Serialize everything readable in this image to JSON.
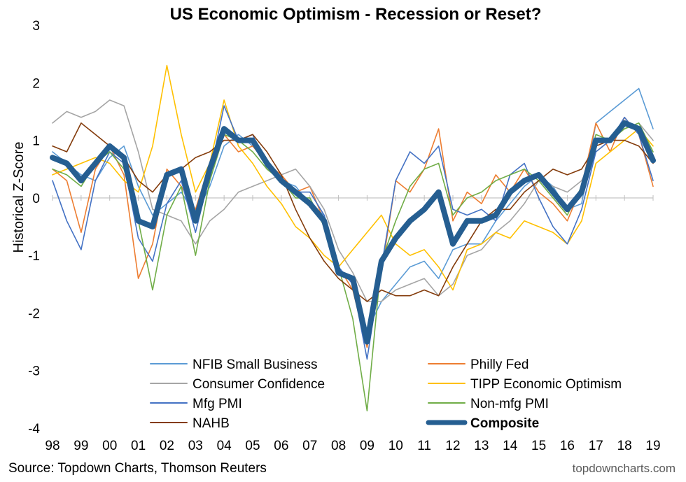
{
  "chart_data": {
    "type": "line",
    "title": "US Economic Optimism - Recession or Reset?",
    "ylabel": "Historical Z-Score",
    "xlabel": "",
    "ylim": [
      -4,
      3
    ],
    "yticks": [
      3,
      2,
      1,
      0,
      -1,
      -2,
      -3,
      -4
    ],
    "xlim": [
      1998,
      2019.1
    ],
    "xticks": [
      {
        "value": 1998,
        "label": "98"
      },
      {
        "value": 1999,
        "label": "99"
      },
      {
        "value": 2000,
        "label": "00"
      },
      {
        "value": 2001,
        "label": "01"
      },
      {
        "value": 2002,
        "label": "02"
      },
      {
        "value": 2003,
        "label": "03"
      },
      {
        "value": 2004,
        "label": "04"
      },
      {
        "value": 2005,
        "label": "05"
      },
      {
        "value": 2006,
        "label": "06"
      },
      {
        "value": 2007,
        "label": "07"
      },
      {
        "value": 2008,
        "label": "08"
      },
      {
        "value": 2009,
        "label": "09"
      },
      {
        "value": 2010,
        "label": "10"
      },
      {
        "value": 2011,
        "label": "11"
      },
      {
        "value": 2012,
        "label": "12"
      },
      {
        "value": 2013,
        "label": "13"
      },
      {
        "value": 2014,
        "label": "14"
      },
      {
        "value": 2015,
        "label": "15"
      },
      {
        "value": 2016,
        "label": "16"
      },
      {
        "value": 2017,
        "label": "17"
      },
      {
        "value": 2018,
        "label": "18"
      },
      {
        "value": 2019,
        "label": "19"
      }
    ],
    "x": [
      1998,
      1998.5,
      1999,
      1999.5,
      2000,
      2000.5,
      2001,
      2001.5,
      2002,
      2002.5,
      2003,
      2003.5,
      2004,
      2004.5,
      2005,
      2005.5,
      2006,
      2006.5,
      2007,
      2007.5,
      2008,
      2008.5,
      2009,
      2009.5,
      2010,
      2010.5,
      2011,
      2011.5,
      2012,
      2012.5,
      2013,
      2013.5,
      2014,
      2014.5,
      2015,
      2015.5,
      2016,
      2016.5,
      2017,
      2017.5,
      2018,
      2018.5,
      2019
    ],
    "series": [
      {
        "name": "NFIB Small Business",
        "color": "#5B9BD5",
        "width": 1.6,
        "values": [
          0.8,
          0.6,
          0.4,
          0.3,
          0.7,
          0.9,
          0.2,
          -0.3,
          -0.1,
          0.1,
          -0.3,
          0.2,
          0.9,
          1.1,
          0.9,
          0.6,
          0.3,
          0.2,
          -0.1,
          -0.3,
          -1.2,
          -1.5,
          -2.3,
          -1.8,
          -1.5,
          -1.2,
          -1.1,
          -1.4,
          -0.9,
          -0.8,
          -0.8,
          -0.4,
          -0.1,
          0.2,
          0.4,
          0.2,
          -0.2,
          -0.1,
          1.3,
          1.5,
          1.7,
          1.9,
          1.2
        ]
      },
      {
        "name": "Philly Fed",
        "color": "#ED7D31",
        "width": 1.6,
        "values": [
          0.5,
          0.3,
          -0.6,
          0.5,
          0.9,
          0.4,
          -1.4,
          -0.8,
          0.5,
          0.2,
          -0.2,
          0.6,
          1.1,
          0.8,
          0.9,
          0.6,
          0.4,
          0.1,
          0.2,
          -0.4,
          -1.2,
          -1.6,
          -2.6,
          -1.3,
          0.3,
          0.1,
          0.5,
          1.2,
          -0.4,
          0.1,
          -0.1,
          0.4,
          0.1,
          0.5,
          0.1,
          -0.1,
          -0.4,
          0.2,
          1.3,
          0.8,
          1.4,
          1.1,
          0.2
        ]
      },
      {
        "name": "Consumer Confidence",
        "color": "#A5A5A5",
        "width": 1.6,
        "values": [
          1.3,
          1.5,
          1.4,
          1.5,
          1.7,
          1.6,
          0.8,
          -0.2,
          -0.3,
          -0.4,
          -0.8,
          -0.4,
          -0.2,
          0.1,
          0.2,
          0.3,
          0.4,
          0.5,
          0.2,
          -0.2,
          -0.9,
          -1.3,
          -1.8,
          -1.8,
          -1.6,
          -1.5,
          -1.4,
          -1.7,
          -1.5,
          -1.0,
          -0.9,
          -0.6,
          -0.4,
          -0.1,
          0.3,
          0.2,
          0.1,
          0.3,
          0.8,
          1.0,
          1.2,
          1.3,
          1.0
        ]
      },
      {
        "name": "TIPP Economic Optimism",
        "color": "#FFC000",
        "width": 1.6,
        "values": [
          0.4,
          0.5,
          0.6,
          0.7,
          0.6,
          0.3,
          0.1,
          0.9,
          2.3,
          1.1,
          0.1,
          0.6,
          1.7,
          0.9,
          0.6,
          0.2,
          -0.1,
          -0.5,
          -0.7,
          -1.0,
          -1.2,
          -0.9,
          -0.6,
          -0.3,
          -0.8,
          -1.0,
          -0.9,
          -1.2,
          -1.6,
          -0.9,
          -0.8,
          -0.6,
          -0.7,
          -0.4,
          -0.5,
          -0.6,
          -0.8,
          -0.4,
          0.6,
          0.8,
          1.0,
          1.2,
          0.9
        ]
      },
      {
        "name": "Mfg PMI",
        "color": "#4472C4",
        "width": 1.6,
        "values": [
          0.3,
          -0.4,
          -0.9,
          0.3,
          0.8,
          0.6,
          -0.7,
          -1.1,
          -0.1,
          0.3,
          -0.6,
          0.4,
          1.6,
          1.0,
          1.1,
          0.5,
          0.3,
          0.1,
          0.1,
          -0.3,
          -1.2,
          -1.5,
          -2.8,
          -1.2,
          0.3,
          0.8,
          0.6,
          0.9,
          -0.2,
          -0.3,
          -0.2,
          -0.4,
          0.4,
          0.6,
          0.0,
          -0.5,
          -0.8,
          -0.2,
          0.8,
          1.0,
          1.4,
          1.1,
          0.3
        ]
      },
      {
        "name": "Non-mfg PMI",
        "color": "#70AD47",
        "width": 1.6,
        "values": [
          0.5,
          0.4,
          0.2,
          0.6,
          0.8,
          0.5,
          -0.4,
          -1.6,
          -0.3,
          0.2,
          -1.0,
          0.3,
          1.1,
          1.0,
          0.8,
          0.5,
          0.3,
          0.0,
          0.0,
          -0.5,
          -1.2,
          -2.1,
          -3.7,
          -1.1,
          -0.4,
          0.2,
          0.5,
          0.6,
          -0.3,
          0.0,
          0.1,
          0.3,
          0.4,
          0.5,
          0.3,
          0.0,
          -0.3,
          0.2,
          1.1,
          1.0,
          1.2,
          1.3,
          0.8
        ]
      },
      {
        "name": "NAHB",
        "color": "#843C0C",
        "width": 1.6,
        "values": [
          0.9,
          0.8,
          1.3,
          1.1,
          0.9,
          0.7,
          0.3,
          0.1,
          0.4,
          0.5,
          0.7,
          0.8,
          1.0,
          1.0,
          1.1,
          0.8,
          0.4,
          -0.2,
          -0.7,
          -1.1,
          -1.4,
          -1.6,
          -1.8,
          -1.6,
          -1.7,
          -1.7,
          -1.6,
          -1.7,
          -1.2,
          -0.8,
          -0.4,
          -0.2,
          -0.2,
          0.1,
          0.3,
          0.5,
          0.4,
          0.5,
          0.9,
          1.0,
          1.0,
          0.9,
          0.6
        ]
      },
      {
        "name": "Composite",
        "color": "#255E91",
        "width": 8,
        "values": [
          0.7,
          0.6,
          0.3,
          0.6,
          0.9,
          0.7,
          -0.4,
          -0.5,
          0.4,
          0.5,
          -0.4,
          0.5,
          1.2,
          1.0,
          1.0,
          0.6,
          0.3,
          0.1,
          -0.1,
          -0.4,
          -1.3,
          -1.4,
          -2.5,
          -1.1,
          -0.7,
          -0.4,
          -0.2,
          0.1,
          -0.8,
          -0.4,
          -0.4,
          -0.3,
          0.1,
          0.3,
          0.4,
          0.1,
          -0.2,
          0.1,
          1.0,
          1.0,
          1.3,
          1.2,
          0.65
        ]
      }
    ],
    "legend": [
      {
        "label": "NFIB Small Business",
        "color": "#5B9BD5",
        "bold": false
      },
      {
        "label": "Philly Fed",
        "color": "#ED7D31",
        "bold": false
      },
      {
        "label": "Consumer Confidence",
        "color": "#A5A5A5",
        "bold": false
      },
      {
        "label": "TIPP Economic Optimism",
        "color": "#FFC000",
        "bold": false
      },
      {
        "label": "Mfg PMI",
        "color": "#4472C4",
        "bold": false
      },
      {
        "label": "Non-mfg PMI",
        "color": "#70AD47",
        "bold": false
      },
      {
        "label": "NAHB",
        "color": "#843C0C",
        "bold": false
      },
      {
        "label": "Composite",
        "color": "#255E91",
        "bold": true
      }
    ],
    "legend_position": "bottom-center",
    "grid": false
  },
  "source_text": "Source: Topdown Charts, Thomson Reuters",
  "credit_text": "topdowncharts.com"
}
